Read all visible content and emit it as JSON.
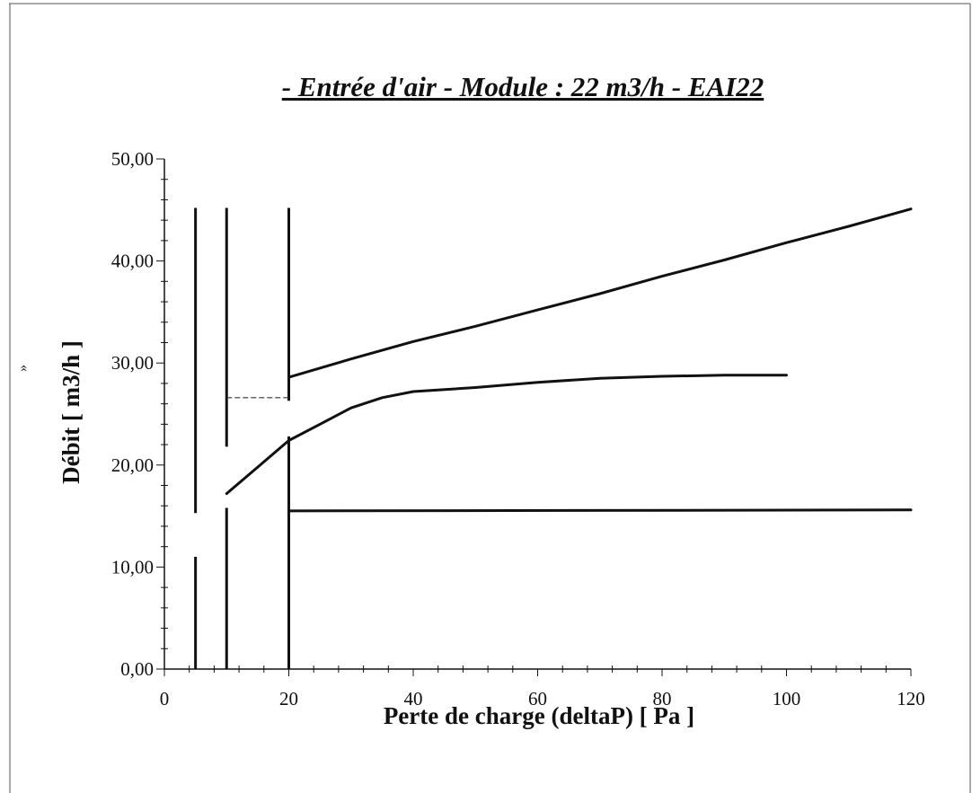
{
  "chart_data": {
    "type": "line",
    "title": "- Entrée d'air - Module : 22 m3/h - EAI22",
    "xlabel": "Perte de charge (deltaP) [ Pa ]",
    "ylabel": "Débit [ m3/h ]",
    "xlim": [
      0,
      120
    ],
    "ylim": [
      0,
      50
    ],
    "x_ticks": [
      0,
      20,
      40,
      60,
      80,
      100,
      120
    ],
    "y_ticks": [
      0,
      10,
      20,
      30,
      40,
      50
    ],
    "y_tick_labels": [
      "0,00",
      "10,00",
      "20,00",
      "30,00",
      "40,00",
      "50,00"
    ],
    "grid": false,
    "legend": "none",
    "series": [
      {
        "x": [
          20,
          30,
          40,
          50,
          60,
          70,
          80,
          90,
          100,
          110,
          120
        ],
        "y": [
          28.6,
          30.4,
          32.1,
          33.6,
          35.2,
          36.8,
          38.5,
          40.1,
          41.8,
          43.4,
          45.1
        ]
      },
      {
        "x": [
          10,
          15,
          20,
          25,
          30,
          35,
          40,
          50,
          60,
          70,
          80,
          90,
          100
        ],
        "y": [
          17.2,
          19.8,
          22.4,
          24.0,
          25.6,
          26.6,
          27.2,
          27.6,
          28.1,
          28.5,
          28.7,
          28.8,
          28.8
        ]
      },
      {
        "x": [
          20,
          120
        ],
        "y": [
          15.5,
          15.6
        ]
      }
    ],
    "vertical_lines": [
      {
        "x": 5,
        "segments": [
          [
            0,
            11.0
          ],
          [
            15.3,
            45.2
          ]
        ]
      },
      {
        "x": 10,
        "segments": [
          [
            0,
            15.8
          ],
          [
            21.8,
            45.2
          ]
        ]
      },
      {
        "x": 20,
        "segments": [
          [
            0,
            22.8
          ],
          [
            26.3,
            45.2
          ]
        ]
      }
    ],
    "reference_lines": [
      {
        "style": "dashed",
        "x": [
          10,
          20
        ],
        "y": [
          26.6,
          26.6
        ]
      }
    ],
    "annotations": [
      {
        "text": "»"
      }
    ]
  }
}
